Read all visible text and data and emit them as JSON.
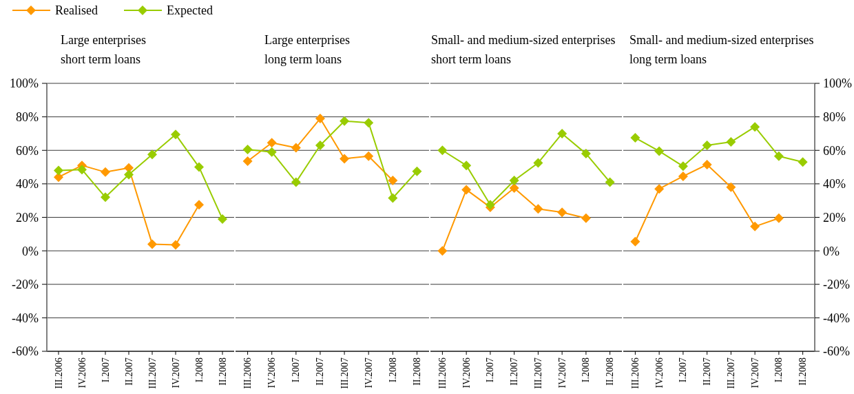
{
  "chart_data": [
    {
      "type": "line",
      "title": "Large enterprises",
      "subtitle": "short term loans",
      "categories": [
        "III.2006",
        "IV.2006",
        "I.2007",
        "II.2007",
        "III.2007",
        "IV.2007",
        "I.2008",
        "II.2008"
      ],
      "series": [
        {
          "name": "Realised",
          "color": "#ff9900",
          "values": [
            44,
            51,
            47,
            49.5,
            4,
            3.5,
            27.5,
            null
          ]
        },
        {
          "name": "Expected",
          "color": "#99cc00",
          "values": [
            48,
            48.5,
            32,
            45.5,
            57.5,
            69.5,
            50,
            19
          ]
        }
      ],
      "ylim": [
        -60,
        100
      ],
      "yticks": [
        {
          "value": -60,
          "label": "-60%"
        },
        {
          "value": -40,
          "label": "-40%"
        },
        {
          "value": -20,
          "label": "-20%"
        },
        {
          "value": 0,
          "label": "0%"
        },
        {
          "value": 20,
          "label": "20%"
        },
        {
          "value": 40,
          "label": "40%"
        },
        {
          "value": 60,
          "label": "60%"
        },
        {
          "value": 80,
          "label": "80%"
        },
        {
          "value": 100,
          "label": "100%"
        }
      ],
      "grid": "y",
      "legend": "top left",
      "marker": "diamond",
      "line_style": "solid"
    },
    {
      "type": "line",
      "title": "Large enterprises",
      "subtitle": "long term loans",
      "categories": [
        "III.2006",
        "IV.2006",
        "I.2007",
        "II.2007",
        "III.2007",
        "IV.2007",
        "I.2008",
        "II.2008"
      ],
      "series": [
        {
          "color": "#ff9900",
          "values": [
            53.5,
            64.5,
            61.5,
            79,
            55,
            56.5,
            42,
            null
          ]
        },
        {
          "color": "#99cc00",
          "values": [
            60.5,
            59,
            41,
            63,
            77.5,
            76.5,
            31.5,
            47.5
          ]
        }
      ],
      "ylim": [
        -60,
        100
      ],
      "yticks": [
        -60,
        -40,
        -20,
        0,
        20,
        40,
        60,
        80,
        100
      ],
      "grid": "y",
      "tick_labels": "x",
      "marker": "diamond",
      "line_style": "solid"
    },
    {
      "type": "line",
      "title": "Small- and medium-sized enterprises",
      "subtitle": "short term loans",
      "categories": [
        "III.2006",
        "IV.2006",
        "I.2007",
        "II.2007",
        "III.2007",
        "IV.2007",
        "I.2008",
        "II.2008"
      ],
      "series": [
        {
          "color": "#ff9900",
          "values": [
            0,
            36.5,
            26,
            37.5,
            25,
            23,
            19.5,
            null
          ]
        },
        {
          "color": "#99cc00",
          "values": [
            60,
            51,
            27.5,
            42,
            52.5,
            70,
            58,
            41
          ]
        }
      ],
      "ylim": [
        -60,
        100
      ],
      "yticks": [
        -60,
        -40,
        -20,
        0,
        20,
        40,
        60,
        80,
        100
      ],
      "grid": "y",
      "tick_labels": "x",
      "marker": "diamond",
      "line_style": "solid"
    },
    {
      "type": "line",
      "title": "Small- and medium-sized enterprises",
      "subtitle": "long term loans",
      "categories": [
        "III.2006",
        "IV.2006",
        "I.2007",
        "II.2007",
        "III.2007",
        "IV.2007",
        "I.2008",
        "II.2008"
      ],
      "series": [
        {
          "color": "#ff9900",
          "axis": "y2",
          "values": [
            5.5,
            37,
            44.5,
            51.5,
            38,
            14.5,
            19.5,
            null
          ]
        },
        {
          "color": "#99cc00",
          "axis": "y2",
          "values": [
            67.5,
            59.5,
            50.5,
            63,
            65,
            74,
            56.5,
            53
          ]
        }
      ],
      "y2lim": [
        -60,
        100
      ],
      "y2ticks": [
        {
          "value": -60,
          "label": "-60%"
        },
        {
          "value": -40,
          "label": "-40%"
        },
        {
          "value": -20,
          "label": "-20%"
        },
        {
          "value": 0,
          "label": "0%"
        },
        {
          "value": 20,
          "label": "20%"
        },
        {
          "value": 40,
          "label": "40%"
        },
        {
          "value": 60,
          "label": "60%"
        },
        {
          "value": 80,
          "label": "80%"
        },
        {
          "value": 100,
          "label": "100%"
        }
      ],
      "grid": "y",
      "marker": "diamond",
      "line_style": "solid"
    }
  ]
}
